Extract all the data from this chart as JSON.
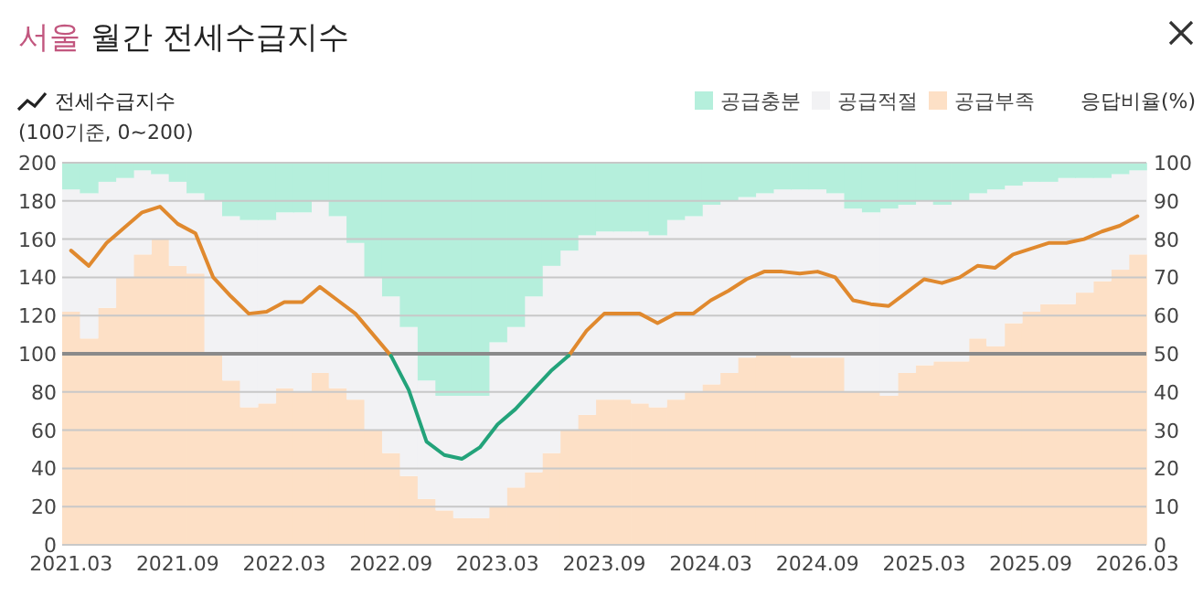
{
  "chart_data": {
    "type": "bar",
    "stacked": true,
    "title": "서울 월간 전세수급지수",
    "ylabel": "전세수급지수",
    "y2label": "응답비율(%)",
    "annotations": [
      "(100기준, 0~200)"
    ],
    "categories": [
      "2021.03",
      null,
      null,
      null,
      null,
      null,
      "2021.09",
      null,
      null,
      null,
      null,
      null,
      "2022.03",
      null,
      null,
      null,
      null,
      null,
      "2022.09",
      null,
      null,
      null,
      null,
      null,
      "2023.03",
      null,
      null,
      null,
      null,
      null,
      "2023.09",
      null,
      null,
      null,
      null,
      null,
      "2024.03",
      null,
      null,
      null,
      null,
      null,
      "2024.09",
      null,
      null,
      null,
      null,
      null,
      "2025.03",
      null,
      null,
      null,
      null,
      null,
      "2025.09",
      null,
      null,
      null,
      null,
      null,
      "2026.03"
    ],
    "series": [
      {
        "name": "공급부족",
        "color": "#fde0c6",
        "axis": "y2",
        "values": [
          61,
          54,
          62,
          70,
          76,
          80,
          73,
          71,
          50,
          43,
          36,
          37,
          41,
          40,
          45,
          41,
          38,
          30,
          24,
          18,
          12,
          9,
          7,
          7,
          10,
          15,
          19,
          24,
          30,
          34,
          38,
          38,
          37,
          36,
          38,
          40,
          42,
          45,
          49,
          50,
          50,
          49,
          49,
          49,
          40,
          40,
          39,
          45,
          47,
          48,
          48,
          54,
          52,
          58,
          61,
          63,
          63,
          66,
          69,
          72,
          76
        ]
      },
      {
        "name": "공급적절",
        "color": "#f2f2f4",
        "axis": "y2",
        "values": [
          32,
          38,
          33,
          26,
          22,
          17,
          22,
          21,
          40,
          43,
          49,
          48,
          46,
          47,
          45,
          45,
          41,
          40,
          41,
          39,
          31,
          30,
          32,
          32,
          43,
          42,
          46,
          49,
          47,
          47,
          44,
          44,
          45,
          45,
          47,
          46,
          47,
          45,
          42,
          42,
          43,
          44,
          44,
          43,
          48,
          47,
          49,
          44,
          43,
          41,
          42,
          38,
          41,
          36,
          34,
          32,
          33,
          30,
          27,
          25,
          22
        ]
      },
      {
        "name": "공급충분",
        "color": "#b5efdc",
        "axis": "y2",
        "values": [
          7,
          8,
          5,
          4,
          2,
          3,
          5,
          8,
          10,
          14,
          15,
          15,
          13,
          13,
          10,
          14,
          21,
          30,
          35,
          43,
          57,
          61,
          61,
          61,
          47,
          43,
          35,
          27,
          23,
          19,
          18,
          18,
          18,
          19,
          15,
          14,
          11,
          10,
          9,
          8,
          7,
          7,
          7,
          8,
          12,
          13,
          12,
          11,
          10,
          11,
          10,
          8,
          7,
          6,
          5,
          5,
          4,
          4,
          4,
          3,
          2
        ]
      },
      {
        "type": "line",
        "color": "#e0892e",
        "axis": "y",
        "values": [
          154,
          146,
          158,
          166,
          174,
          177,
          168,
          163,
          140,
          130,
          121,
          122,
          127,
          127,
          135,
          128,
          121,
          110,
          99,
          null,
          null,
          null,
          null,
          null,
          null,
          null,
          null,
          null,
          99,
          112,
          121,
          121,
          121,
          116,
          121,
          121,
          128,
          133,
          139,
          143,
          143,
          142,
          143,
          140,
          128,
          126,
          125,
          132,
          139,
          137,
          140,
          146,
          145,
          152,
          155,
          158,
          158,
          160,
          164,
          167,
          172
        ]
      },
      {
        "type": "line",
        "color": "#23a37a",
        "axis": "y",
        "values": [
          null,
          null,
          null,
          null,
          null,
          null,
          null,
          null,
          null,
          null,
          null,
          null,
          null,
          null,
          null,
          null,
          null,
          null,
          99,
          81,
          54,
          47,
          45,
          51,
          63,
          71,
          81,
          91,
          99,
          null,
          null,
          null,
          null,
          null,
          null,
          null,
          null,
          null,
          null,
          null,
          null,
          null,
          null,
          null,
          null,
          null,
          null,
          null,
          null,
          null,
          null,
          null,
          null,
          null,
          null,
          null,
          null,
          null,
          null,
          null,
          null
        ]
      }
    ],
    "ylim": [
      0,
      200
    ],
    "yticks": [
      0,
      20,
      40,
      60,
      80,
      100,
      120,
      140,
      160,
      180,
      200
    ],
    "y2lim": [
      0,
      100
    ],
    "y2ticks": [
      0,
      10,
      20,
      30,
      40,
      50,
      60,
      70,
      80,
      90,
      100
    ],
    "grid": "y",
    "legend": "top right",
    "ref_lines": [
      {
        "axis": "y",
        "value": 100,
        "color": "#8a8a8a"
      }
    ]
  }
}
